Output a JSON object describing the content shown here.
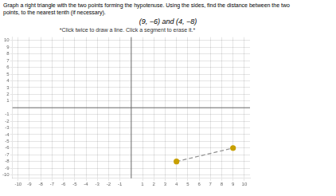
{
  "chart_data": {
    "type": "scatter",
    "title": [
      "Graph a right triangle with the two points forming the hypotenuse. Using the sides, find the distance between the two",
      "points, to the nearest tenth (if necessary)."
    ],
    "subtitle": "(9, −6) and (4, −8)",
    "annotations": [
      "*Click twice to draw a line. Click a segment to erase it.*"
    ],
    "series": [
      {
        "type": "line",
        "x": [
          4,
          9
        ],
        "values": [
          -8,
          -6
        ],
        "color": "#909090",
        "line_style": "dashed",
        "marker": "none"
      },
      {
        "type": "scatter",
        "x": [
          9,
          4
        ],
        "values": [
          -6,
          -8
        ],
        "color": "#c8a000",
        "marker": "circle"
      }
    ],
    "xlim": [
      -10.5,
      10.5
    ],
    "ylim": [
      -10.5,
      10.5
    ],
    "xticks": [
      -10,
      -9,
      -8,
      -7,
      -6,
      -5,
      -4,
      -3,
      -2,
      -1,
      1,
      2,
      3,
      4,
      5,
      6,
      7,
      8,
      9,
      10
    ],
    "yticks": [
      -10,
      -9,
      -8,
      -7,
      -6,
      -5,
      -4,
      -3,
      -2,
      -1,
      1,
      2,
      3,
      4,
      5,
      6,
      7,
      8,
      9,
      10
    ],
    "grid": true
  }
}
